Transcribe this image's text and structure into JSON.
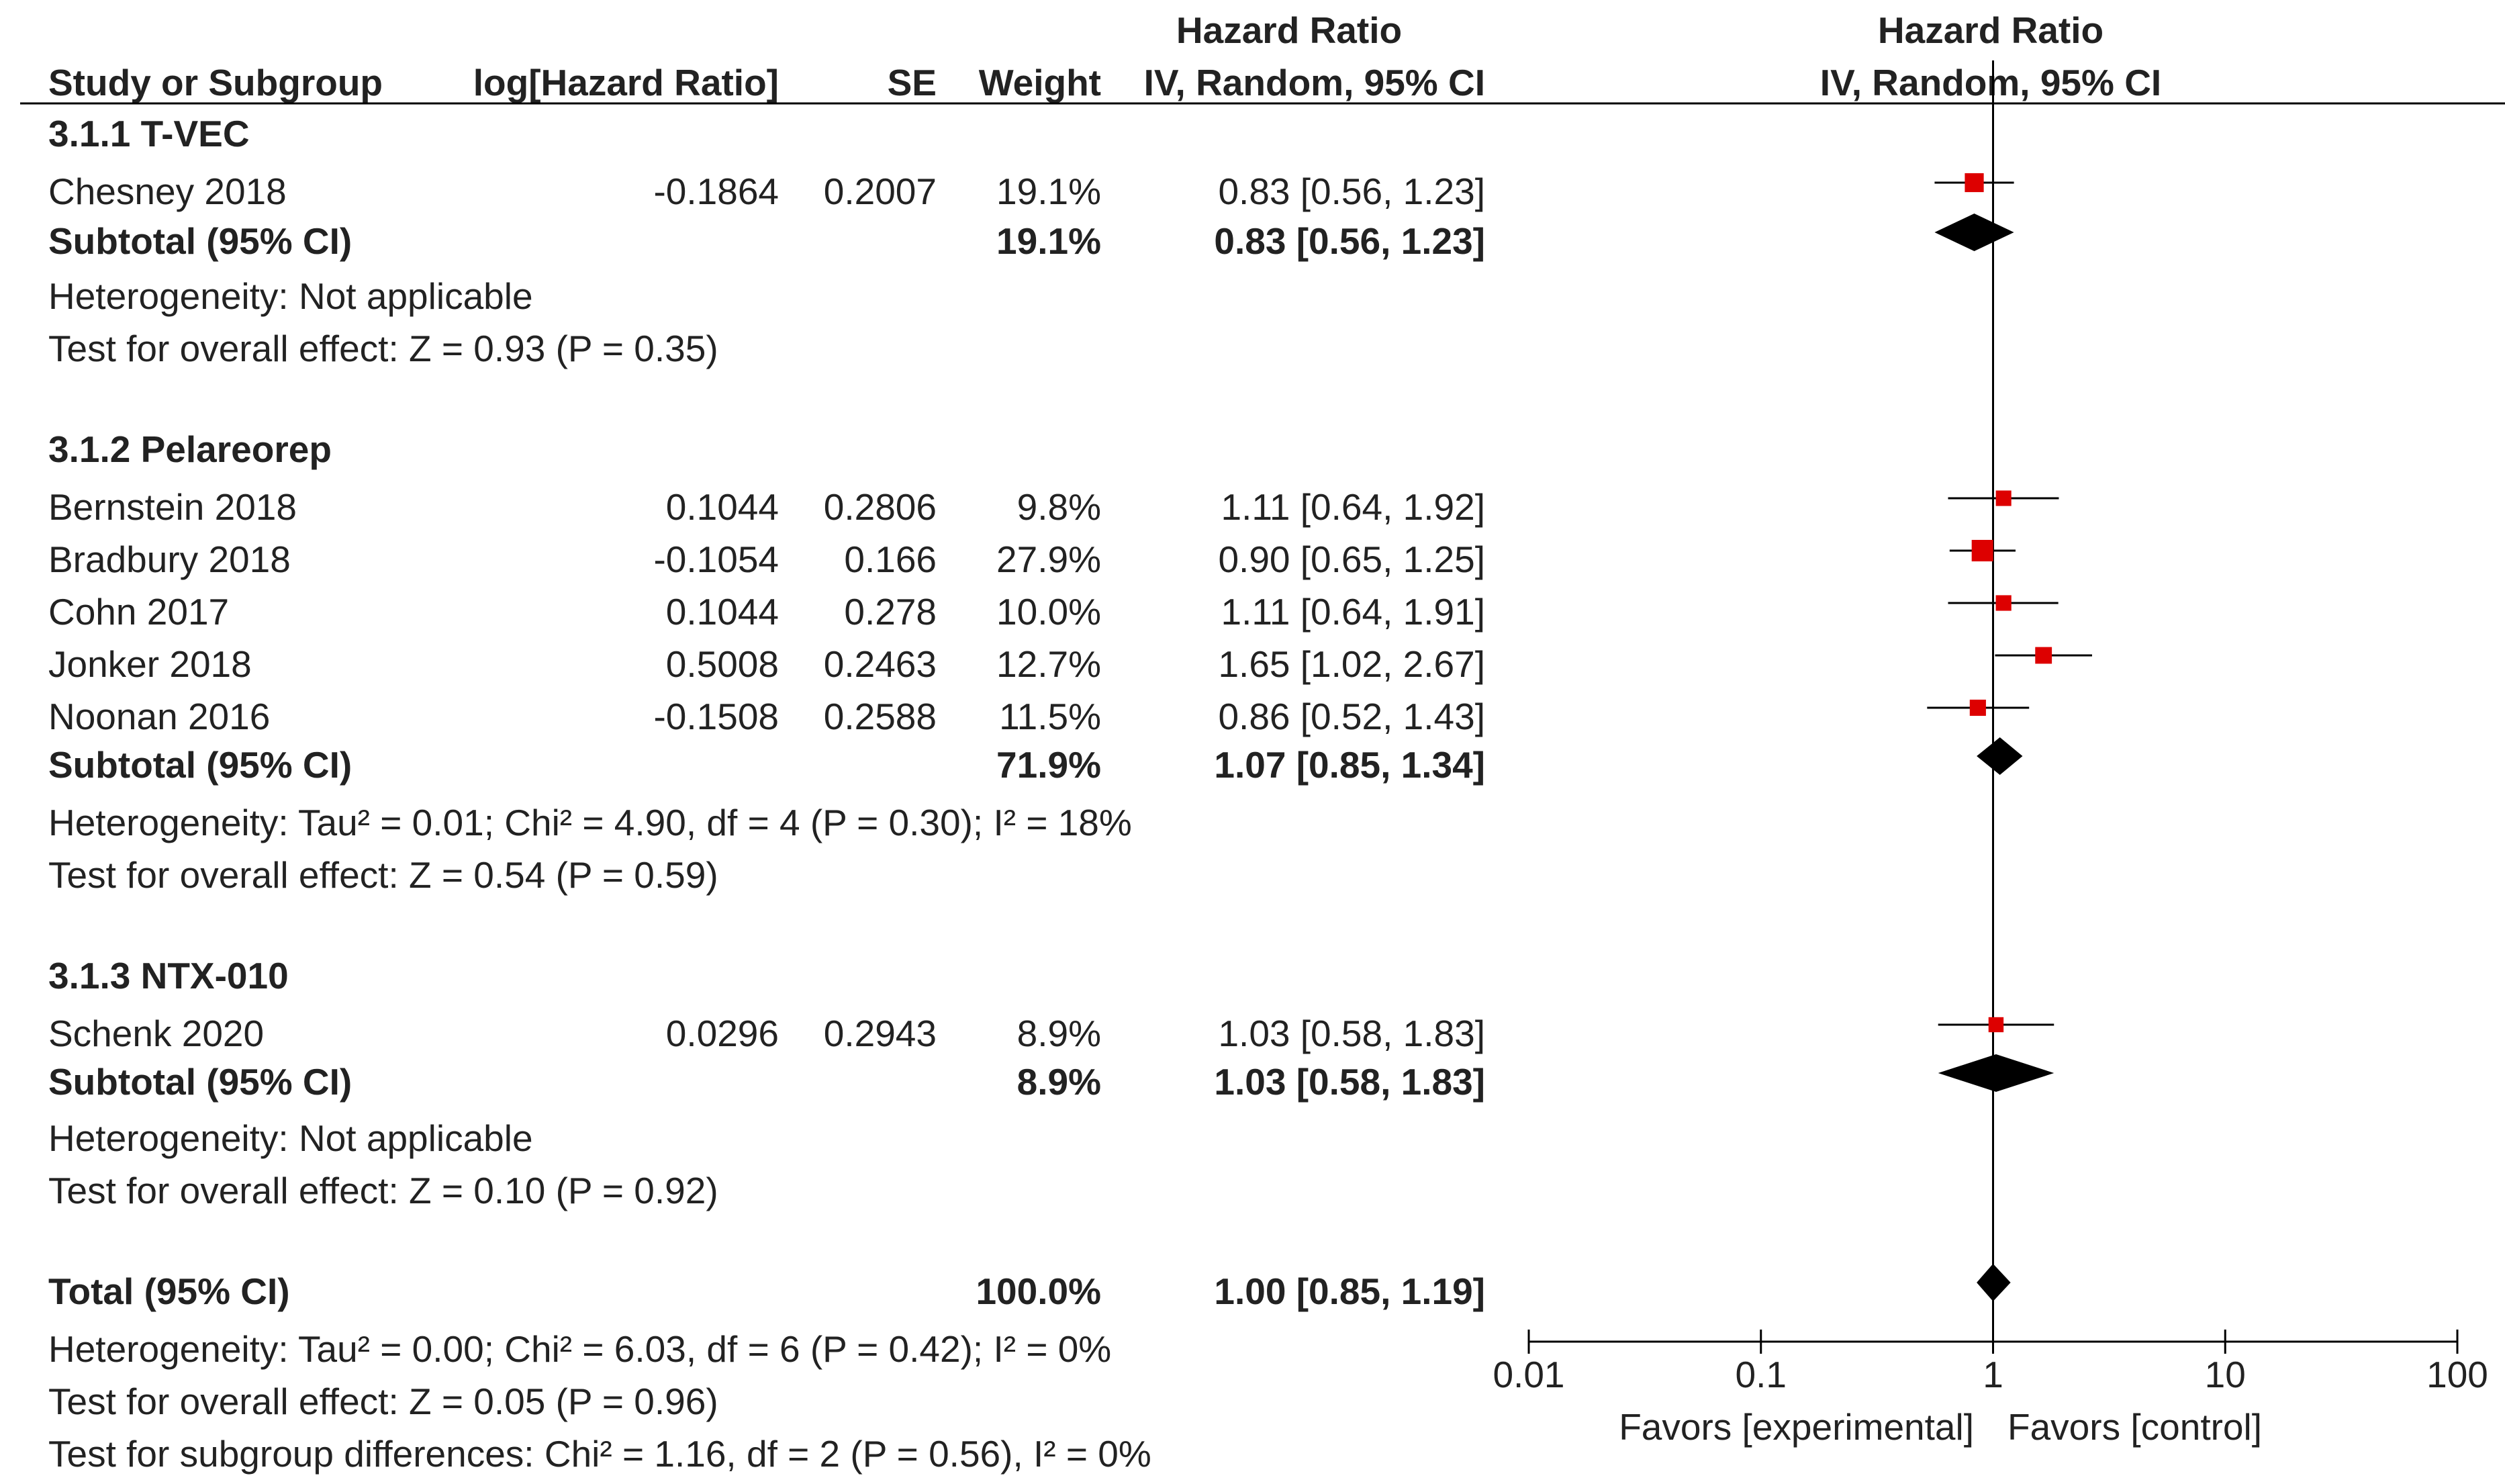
{
  "header": {
    "col_study": "Study or Subgroup",
    "col_log": "log[Hazard Ratio]",
    "col_se": "SE",
    "col_weight": "Weight",
    "col_hr_title": "Hazard Ratio",
    "col_hr_method": "IV, Random, 95% CI",
    "plot_title": "Hazard Ratio",
    "plot_method": "IV, Random, 95% CI"
  },
  "groups": [
    {
      "title": "3.1.1 T-VEC",
      "studies": [
        {
          "name": "Chesney 2018",
          "log": "-0.1864",
          "se": "0.2007",
          "weight": "19.1%",
          "ci": "0.83 [0.56, 1.23]"
        }
      ],
      "subtotal": {
        "label": "Subtotal (95% CI)",
        "weight": "19.1%",
        "ci": "0.83 [0.56, 1.23]"
      },
      "heterogeneity": "Heterogeneity: Not applicable",
      "overall": "Test for overall effect: Z = 0.93 (P = 0.35)"
    },
    {
      "title": "3.1.2 Pelareorep",
      "studies": [
        {
          "name": "Bernstein 2018",
          "log": "0.1044",
          "se": "0.2806",
          "weight": "9.8%",
          "ci": "1.11 [0.64, 1.92]"
        },
        {
          "name": "Bradbury 2018",
          "log": "-0.1054",
          "se": "0.166",
          "weight": "27.9%",
          "ci": "0.90 [0.65, 1.25]"
        },
        {
          "name": "Cohn 2017",
          "log": "0.1044",
          "se": "0.278",
          "weight": "10.0%",
          "ci": "1.11 [0.64, 1.91]"
        },
        {
          "name": "Jonker 2018",
          "log": "0.5008",
          "se": "0.2463",
          "weight": "12.7%",
          "ci": "1.65 [1.02, 2.67]"
        },
        {
          "name": "Noonan 2016",
          "log": "-0.1508",
          "se": "0.2588",
          "weight": "11.5%",
          "ci": "0.86 [0.52, 1.43]"
        }
      ],
      "subtotal": {
        "label": "Subtotal (95% CI)",
        "weight": "71.9%",
        "ci": "1.07 [0.85, 1.34]"
      },
      "heterogeneity": "Heterogeneity: Tau² = 0.01; Chi² = 4.90, df = 4 (P = 0.30); I² = 18%",
      "overall": "Test for overall effect: Z = 0.54 (P = 0.59)"
    },
    {
      "title": "3.1.3 NTX-010",
      "studies": [
        {
          "name": "Schenk 2020",
          "log": "0.0296",
          "se": "0.2943",
          "weight": "8.9%",
          "ci": "1.03 [0.58, 1.83]"
        }
      ],
      "subtotal": {
        "label": "Subtotal (95% CI)",
        "weight": "8.9%",
        "ci": "1.03 [0.58, 1.83]"
      },
      "heterogeneity": "Heterogeneity: Not applicable",
      "overall": "Test for overall effect: Z = 0.10 (P = 0.92)"
    }
  ],
  "total": {
    "label": "Total (95% CI)",
    "weight": "100.0%",
    "ci": "1.00 [0.85, 1.19]",
    "heterogeneity": "Heterogeneity: Tau² = 0.00; Chi² = 6.03, df = 6 (P = 0.42); I² = 0%",
    "overall": "Test for overall effect: Z = 0.05 (P = 0.96)",
    "subgroup": "Test for subgroup differences: Chi² = 1.16, df = 2 (P = 0.56), I² = 0%"
  },
  "axis": {
    "ticks": [
      "0.01",
      "0.1",
      "1",
      "10",
      "100"
    ],
    "favors_left": "Favors [experimental]",
    "favors_right": "Favors [control]"
  },
  "colors": {
    "study_marker": "#dd0000",
    "diamond": "#000000",
    "line": "#000000"
  },
  "chart_data": {
    "type": "forest",
    "scale": "log",
    "xlim": [
      0.01,
      100
    ],
    "null_line": 1,
    "studies": [
      {
        "name": "Chesney 2018",
        "hr": 0.83,
        "lo": 0.56,
        "hi": 1.23,
        "weight": 19.1,
        "group": "3.1.1 T-VEC"
      },
      {
        "name": "Bernstein 2018",
        "hr": 1.11,
        "lo": 0.64,
        "hi": 1.92,
        "weight": 9.8,
        "group": "3.1.2 Pelareorep"
      },
      {
        "name": "Bradbury 2018",
        "hr": 0.9,
        "lo": 0.65,
        "hi": 1.25,
        "weight": 27.9,
        "group": "3.1.2 Pelareorep"
      },
      {
        "name": "Cohn 2017",
        "hr": 1.11,
        "lo": 0.64,
        "hi": 1.91,
        "weight": 10.0,
        "group": "3.1.2 Pelareorep"
      },
      {
        "name": "Jonker 2018",
        "hr": 1.65,
        "lo": 1.02,
        "hi": 2.67,
        "weight": 12.7,
        "group": "3.1.2 Pelareorep"
      },
      {
        "name": "Noonan 2016",
        "hr": 0.86,
        "lo": 0.52,
        "hi": 1.43,
        "weight": 11.5,
        "group": "3.1.2 Pelareorep"
      },
      {
        "name": "Schenk 2020",
        "hr": 1.03,
        "lo": 0.58,
        "hi": 1.83,
        "weight": 8.9,
        "group": "3.1.3 NTX-010"
      }
    ],
    "subtotals": [
      {
        "name": "3.1.1 T-VEC",
        "hr": 0.83,
        "lo": 0.56,
        "hi": 1.23
      },
      {
        "name": "3.1.2 Pelareorep",
        "hr": 1.07,
        "lo": 0.85,
        "hi": 1.34
      },
      {
        "name": "3.1.3 NTX-010",
        "hr": 1.03,
        "lo": 0.58,
        "hi": 1.83
      },
      {
        "name": "Total",
        "hr": 1.0,
        "lo": 0.85,
        "hi": 1.19
      }
    ]
  }
}
